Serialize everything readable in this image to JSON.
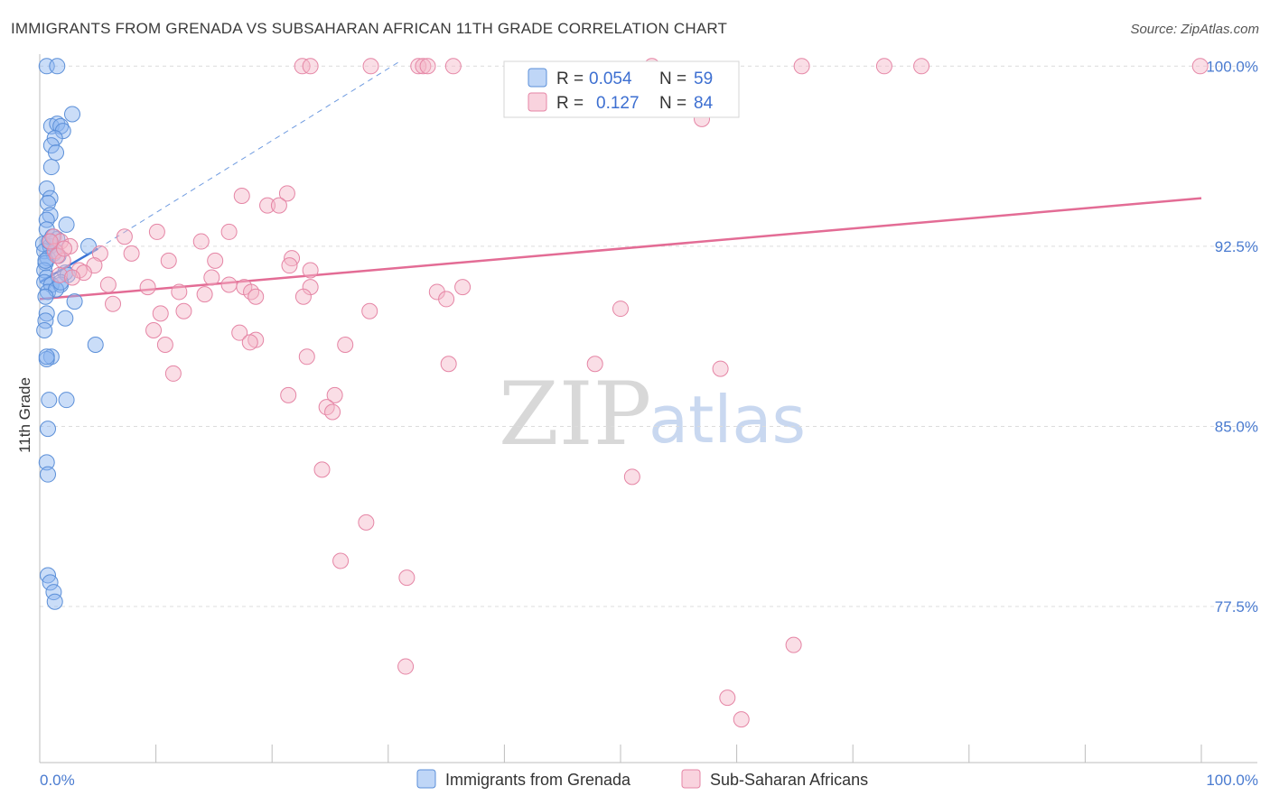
{
  "header": {
    "title": "IMMIGRANTS FROM GRENADA VS SUBSAHARAN AFRICAN 11TH GRADE CORRELATION CHART",
    "source": "Source: ZipAtlas.com"
  },
  "watermark": {
    "zip": "ZIP",
    "atlas": "atlas"
  },
  "chart_data": {
    "type": "scatter",
    "ylabel": "11th Grade",
    "xlim": [
      0,
      100
    ],
    "ylim": [
      71.0,
      100.5
    ],
    "x_tick_labels": [
      "0.0%",
      "100.0%"
    ],
    "y_ticks": [
      77.5,
      85.0,
      92.5,
      100.0
    ],
    "y_tick_labels": [
      "77.5%",
      "85.0%",
      "92.5%",
      "100.0%"
    ],
    "grid": true,
    "legend_position": "top-center",
    "legend": [
      {
        "r_label": "R = ",
        "r_value": "0.054",
        "n_label": "N = ",
        "n_value": "59"
      },
      {
        "r_label": "R = ",
        "r_value": "0.127",
        "n_label": "N = ",
        "n_value": "84"
      }
    ],
    "series": [
      {
        "name": "Immigrants from Grenada",
        "color": "#8ab4f0",
        "stroke": "#5b8fd8",
        "trend": {
          "x": [
            0,
            5
          ],
          "y": [
            91.0,
            92.4
          ]
        },
        "trend_ext": {
          "x": [
            5,
            31
          ],
          "y": [
            92.4,
            100.2
          ]
        },
        "points": [
          [
            0.6,
            100
          ],
          [
            1.5,
            100
          ],
          [
            2.8,
            98.0
          ],
          [
            1.0,
            97.5
          ],
          [
            1.5,
            97.6
          ],
          [
            1.8,
            97.5
          ],
          [
            2.0,
            97.3
          ],
          [
            1.3,
            97.0
          ],
          [
            1.0,
            96.7
          ],
          [
            1.4,
            96.4
          ],
          [
            1.0,
            95.8
          ],
          [
            0.6,
            94.9
          ],
          [
            0.9,
            94.5
          ],
          [
            0.7,
            94.3
          ],
          [
            0.9,
            93.8
          ],
          [
            0.6,
            93.6
          ],
          [
            2.3,
            93.4
          ],
          [
            0.6,
            93.2
          ],
          [
            1.5,
            92.8
          ],
          [
            0.3,
            92.6
          ],
          [
            0.9,
            92.5
          ],
          [
            4.2,
            92.5
          ],
          [
            0.4,
            92.3
          ],
          [
            1.2,
            92.2
          ],
          [
            0.7,
            92.0
          ],
          [
            1.6,
            92.1
          ],
          [
            0.5,
            91.8
          ],
          [
            0.4,
            91.5
          ],
          [
            2.2,
            91.4
          ],
          [
            2.4,
            91.3
          ],
          [
            0.6,
            91.2
          ],
          [
            0.4,
            91.0
          ],
          [
            1.0,
            90.9
          ],
          [
            1.8,
            90.9
          ],
          [
            0.7,
            90.6
          ],
          [
            1.4,
            90.7
          ],
          [
            0.5,
            90.4
          ],
          [
            3.0,
            90.2
          ],
          [
            0.6,
            89.7
          ],
          [
            2.2,
            89.5
          ],
          [
            0.5,
            89.4
          ],
          [
            0.4,
            89.0
          ],
          [
            4.8,
            88.4
          ],
          [
            1.0,
            87.9
          ],
          [
            0.6,
            87.8
          ],
          [
            0.6,
            87.9
          ],
          [
            0.8,
            86.1
          ],
          [
            2.3,
            86.1
          ],
          [
            0.7,
            84.9
          ],
          [
            0.6,
            83.5
          ],
          [
            0.7,
            83.0
          ],
          [
            0.7,
            78.8
          ],
          [
            0.9,
            78.5
          ],
          [
            1.2,
            78.1
          ],
          [
            1.3,
            77.7
          ],
          [
            0.8,
            92.7
          ],
          [
            1.1,
            92.9
          ],
          [
            0.5,
            91.9
          ],
          [
            1.8,
            91.0
          ]
        ]
      },
      {
        "name": "Sub-Saharan Africans",
        "color": "#f5b6c8",
        "stroke": "#e585a5",
        "trend": {
          "x": [
            0,
            100
          ],
          "y": [
            90.3,
            94.5
          ]
        },
        "points": [
          [
            22.6,
            100
          ],
          [
            23.3,
            100
          ],
          [
            28.5,
            100
          ],
          [
            32.6,
            100
          ],
          [
            33.0,
            100
          ],
          [
            33.4,
            100
          ],
          [
            35.6,
            100
          ],
          [
            52.7,
            100
          ],
          [
            65.6,
            100
          ],
          [
            72.7,
            100
          ],
          [
            75.9,
            100
          ],
          [
            99.9,
            100
          ],
          [
            57.0,
            97.8
          ],
          [
            17.4,
            94.6
          ],
          [
            21.3,
            94.7
          ],
          [
            19.6,
            94.2
          ],
          [
            20.6,
            94.2
          ],
          [
            10.1,
            93.1
          ],
          [
            16.3,
            93.1
          ],
          [
            1.2,
            92.9
          ],
          [
            7.3,
            92.9
          ],
          [
            1.8,
            92.7
          ],
          [
            13.9,
            92.7
          ],
          [
            2.6,
            92.5
          ],
          [
            7.9,
            92.2
          ],
          [
            21.7,
            92.0
          ],
          [
            1.3,
            92.3
          ],
          [
            5.2,
            92.2
          ],
          [
            11.1,
            91.9
          ],
          [
            15.1,
            91.9
          ],
          [
            2.0,
            91.9
          ],
          [
            3.4,
            91.5
          ],
          [
            4.7,
            91.7
          ],
          [
            3.8,
            91.4
          ],
          [
            21.5,
            91.7
          ],
          [
            23.3,
            91.5
          ],
          [
            1.7,
            91.3
          ],
          [
            2.8,
            91.2
          ],
          [
            14.8,
            91.2
          ],
          [
            5.9,
            90.9
          ],
          [
            9.3,
            90.8
          ],
          [
            16.3,
            90.9
          ],
          [
            17.6,
            90.8
          ],
          [
            23.3,
            90.8
          ],
          [
            36.4,
            90.8
          ],
          [
            12.0,
            90.6
          ],
          [
            18.2,
            90.6
          ],
          [
            14.2,
            90.5
          ],
          [
            18.6,
            90.4
          ],
          [
            22.7,
            90.4
          ],
          [
            34.2,
            90.6
          ],
          [
            35.0,
            90.3
          ],
          [
            6.3,
            90.1
          ],
          [
            10.4,
            89.7
          ],
          [
            12.4,
            89.8
          ],
          [
            28.4,
            89.8
          ],
          [
            50.0,
            89.9
          ],
          [
            9.8,
            89.0
          ],
          [
            17.2,
            88.9
          ],
          [
            18.6,
            88.6
          ],
          [
            26.3,
            88.4
          ],
          [
            10.8,
            88.4
          ],
          [
            18.1,
            88.5
          ],
          [
            23.0,
            87.9
          ],
          [
            35.2,
            87.6
          ],
          [
            47.8,
            87.6
          ],
          [
            58.6,
            87.4
          ],
          [
            11.5,
            87.2
          ],
          [
            21.4,
            86.3
          ],
          [
            25.4,
            86.3
          ],
          [
            24.7,
            85.8
          ],
          [
            25.2,
            85.6
          ],
          [
            24.3,
            83.2
          ],
          [
            51.0,
            82.9
          ],
          [
            28.1,
            81.0
          ],
          [
            25.9,
            79.4
          ],
          [
            31.6,
            78.7
          ],
          [
            31.5,
            75.0
          ],
          [
            59.2,
            73.7
          ],
          [
            64.9,
            75.9
          ],
          [
            60.4,
            72.8
          ],
          [
            1.5,
            92.1
          ],
          [
            2.1,
            92.4
          ],
          [
            0.9,
            92.7
          ]
        ]
      }
    ]
  },
  "bottom_legend": {
    "grenada": "Immigrants from Grenada",
    "subsaharan": "Sub-Saharan Africans"
  }
}
